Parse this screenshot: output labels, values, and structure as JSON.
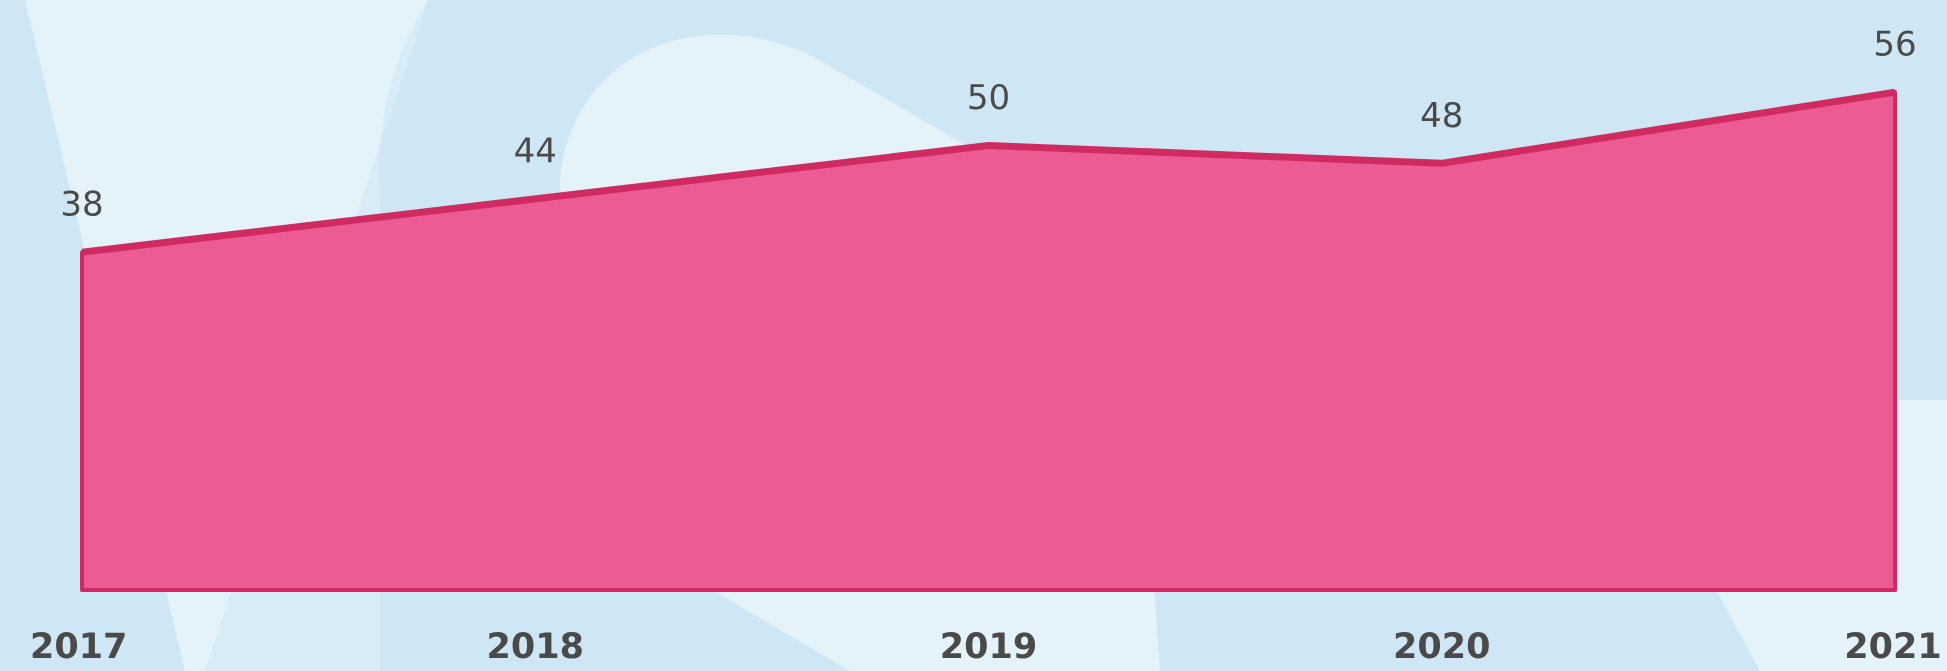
{
  "chart_data": {
    "type": "area",
    "categories": [
      "2017",
      "2018",
      "2019",
      "2020",
      "2021"
    ],
    "values": [
      38,
      44,
      50,
      48,
      56
    ],
    "color": "#ec5b94",
    "line_color": "#d12a63"
  }
}
